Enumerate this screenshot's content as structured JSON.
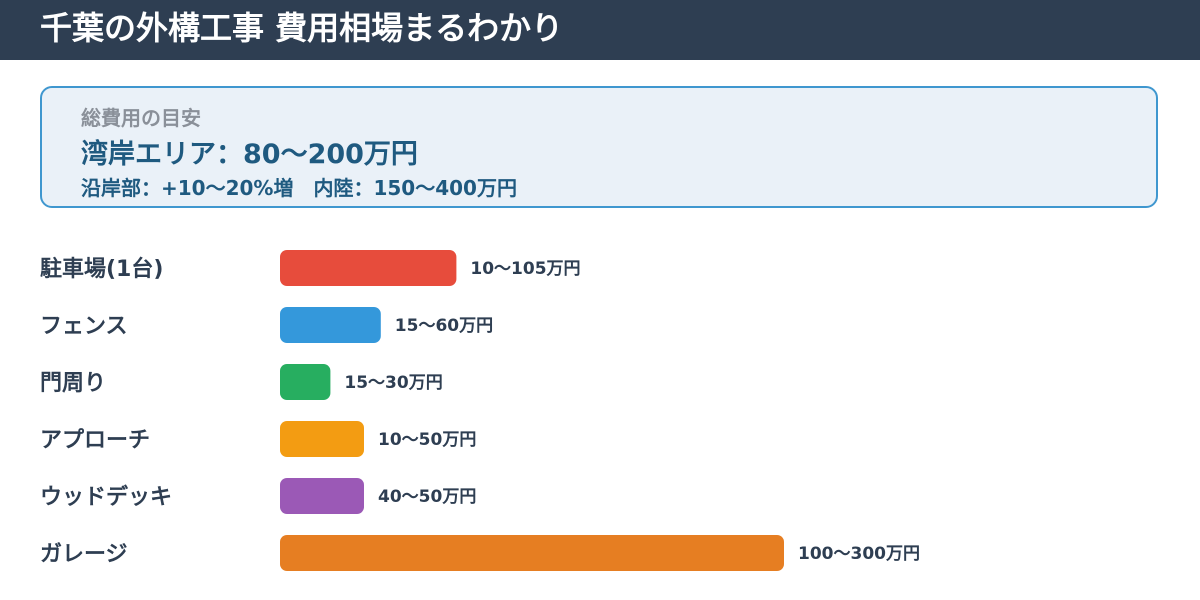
{
  "header": {
    "title": "千葉の外構工事 費用相場まるわかり",
    "bg_color": "#2e3e52"
  },
  "summary": {
    "label": "総費用の目安",
    "main": "湾岸エリア：80〜200万円",
    "sub": "沿岸部：+10〜20%増　内陸：150〜400万円"
  },
  "chart_data": {
    "type": "bar",
    "orientation": "horizontal",
    "categories": [
      "駐車場(1台)",
      "フェンス",
      "門周り",
      "アプローチ",
      "ウッドデッキ",
      "ガレージ"
    ],
    "value_labels": [
      "10〜105万円",
      "15〜60万円",
      "15〜30万円",
      "10〜50万円",
      "40〜50万円",
      "100〜300万円"
    ],
    "values": [
      105,
      60,
      30,
      50,
      50,
      300
    ],
    "colors": [
      "#e74c3c",
      "#3498db",
      "#27ae60",
      "#f39c12",
      "#9b59b6",
      "#e67e22"
    ],
    "xlim": [
      0,
      300
    ],
    "grid": false,
    "legend": "none"
  }
}
